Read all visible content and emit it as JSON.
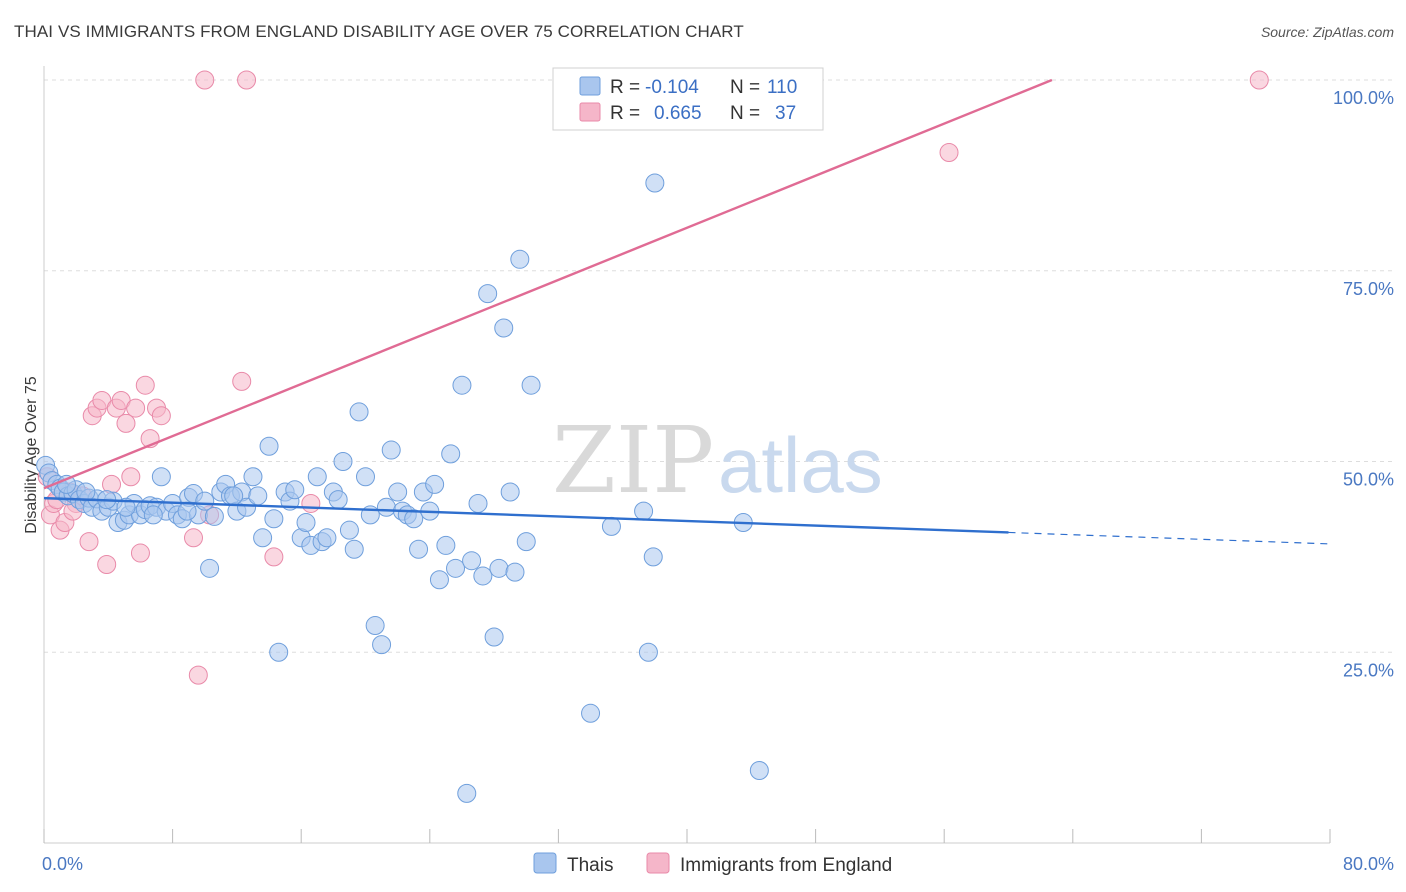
{
  "title": "THAI VS IMMIGRANTS FROM ENGLAND DISABILITY AGE OVER 75 CORRELATION CHART",
  "source": "Source: ZipAtlas.com",
  "watermark": {
    "part1": "ZIP",
    "part2": "atlas"
  },
  "legend_top": {
    "rows": [
      {
        "r_label": "R =",
        "r_value": "-0.104",
        "n_label": "N =",
        "n_value": "110",
        "color": "#a9c6ee"
      },
      {
        "r_label": "R =",
        "r_value": "0.665",
        "n_label": "N =",
        "n_value": "37",
        "color": "#f5b6c9"
      }
    ]
  },
  "chart_data": {
    "type": "scatter",
    "xlabel": "",
    "ylabel": "Disability Age Over 75",
    "xlim": [
      0,
      80
    ],
    "ylim": [
      0,
      100
    ],
    "x_tick_labels": [
      "0.0%",
      "80.0%"
    ],
    "y_ticks": [
      25,
      50,
      75,
      100
    ],
    "y_tick_labels": [
      "25.0%",
      "50.0%",
      "75.0%",
      "100.0%"
    ],
    "grid": true,
    "legend_placement": "bottom",
    "series": [
      {
        "name": "Thais",
        "color": "#a9c6ee",
        "stroke": "#6f9fdc",
        "trend": {
          "x0": 0,
          "y0": 45.2,
          "x1": 60,
          "y1": 40.7,
          "dash_to_x": 80,
          "dash_to_y": 39.2,
          "color": "#2f6fce"
        },
        "points": [
          [
            0.1,
            49.5
          ],
          [
            0.3,
            48.5
          ],
          [
            0.5,
            47.5
          ],
          [
            0.8,
            47.0
          ],
          [
            1.0,
            46.5
          ],
          [
            1.2,
            46.0
          ],
          [
            1.5,
            45.5
          ],
          [
            1.8,
            45.8
          ],
          [
            2.0,
            46.3
          ],
          [
            2.2,
            45.0
          ],
          [
            2.5,
            44.5
          ],
          [
            2.8,
            45.2
          ],
          [
            3.0,
            44.0
          ],
          [
            3.3,
            45.1
          ],
          [
            3.6,
            43.5
          ],
          [
            4.0,
            44.0
          ],
          [
            4.3,
            44.8
          ],
          [
            4.6,
            42.0
          ],
          [
            5.0,
            42.3
          ],
          [
            5.3,
            43.0
          ],
          [
            5.6,
            44.5
          ],
          [
            6.0,
            43.0
          ],
          [
            6.3,
            43.7
          ],
          [
            6.6,
            44.2
          ],
          [
            7.0,
            44.0
          ],
          [
            7.3,
            48.0
          ],
          [
            7.6,
            43.5
          ],
          [
            8.0,
            44.5
          ],
          [
            8.3,
            43.0
          ],
          [
            8.6,
            42.5
          ],
          [
            9.0,
            45.3
          ],
          [
            9.3,
            45.8
          ],
          [
            9.6,
            43.0
          ],
          [
            10.0,
            44.8
          ],
          [
            10.3,
            36.0
          ],
          [
            10.6,
            42.8
          ],
          [
            11.0,
            46.0
          ],
          [
            11.3,
            47.0
          ],
          [
            11.6,
            45.5
          ],
          [
            12.0,
            43.5
          ],
          [
            12.3,
            46.0
          ],
          [
            12.6,
            44.0
          ],
          [
            13.0,
            48.0
          ],
          [
            13.3,
            45.5
          ],
          [
            13.6,
            40.0
          ],
          [
            14.0,
            52.0
          ],
          [
            14.3,
            42.5
          ],
          [
            14.6,
            25.0
          ],
          [
            15.0,
            46.0
          ],
          [
            15.3,
            44.8
          ],
          [
            15.6,
            46.3
          ],
          [
            16.0,
            40.0
          ],
          [
            16.3,
            42.0
          ],
          [
            16.6,
            39.0
          ],
          [
            17.0,
            48.0
          ],
          [
            17.3,
            39.5
          ],
          [
            17.6,
            40.0
          ],
          [
            18.0,
            46.0
          ],
          [
            18.3,
            45.0
          ],
          [
            18.6,
            50.0
          ],
          [
            19.0,
            41.0
          ],
          [
            19.3,
            38.5
          ],
          [
            19.6,
            56.5
          ],
          [
            20.0,
            48.0
          ],
          [
            20.3,
            43.0
          ],
          [
            20.6,
            28.5
          ],
          [
            21.0,
            26.0
          ],
          [
            21.3,
            44.0
          ],
          [
            21.6,
            51.5
          ],
          [
            22.0,
            46.0
          ],
          [
            22.3,
            43.5
          ],
          [
            22.6,
            43.0
          ],
          [
            23.0,
            42.5
          ],
          [
            23.3,
            38.5
          ],
          [
            23.6,
            46.0
          ],
          [
            24.0,
            43.5
          ],
          [
            24.3,
            47.0
          ],
          [
            24.6,
            34.5
          ],
          [
            25.0,
            39.0
          ],
          [
            25.3,
            51.0
          ],
          [
            25.6,
            36.0
          ],
          [
            26.0,
            60.0
          ],
          [
            26.3,
            6.5
          ],
          [
            26.6,
            37.0
          ],
          [
            27.0,
            44.5
          ],
          [
            27.3,
            35.0
          ],
          [
            27.6,
            72.0
          ],
          [
            28.0,
            27.0
          ],
          [
            28.3,
            36.0
          ],
          [
            28.6,
            67.5
          ],
          [
            29.0,
            46.0
          ],
          [
            29.3,
            35.5
          ],
          [
            29.6,
            76.5
          ],
          [
            30.0,
            39.5
          ],
          [
            30.3,
            60.0
          ],
          [
            34.0,
            17.0
          ],
          [
            35.3,
            41.5
          ],
          [
            37.3,
            43.5
          ],
          [
            37.6,
            25.0
          ],
          [
            37.9,
            37.5
          ],
          [
            38.0,
            86.5
          ],
          [
            43.5,
            42.0
          ],
          [
            44.5,
            9.5
          ],
          [
            1.4,
            47.0
          ],
          [
            2.6,
            46.0
          ],
          [
            3.9,
            45.0
          ],
          [
            5.1,
            44.0
          ],
          [
            6.8,
            43.0
          ],
          [
            8.9,
            43.5
          ],
          [
            11.8,
            45.5
          ]
        ]
      },
      {
        "name": "Immigrants from England",
        "color": "#f5b6c9",
        "stroke": "#e98aa9",
        "trend": {
          "x0": 0,
          "y0": 46.5,
          "x1": 62.7,
          "y1": 100,
          "color": "#e06b94"
        },
        "points": [
          [
            0.2,
            48.0
          ],
          [
            0.4,
            43.0
          ],
          [
            0.6,
            44.5
          ],
          [
            1.0,
            41.0
          ],
          [
            1.3,
            42.0
          ],
          [
            1.6,
            46.0
          ],
          [
            2.0,
            44.5
          ],
          [
            2.4,
            45.5
          ],
          [
            2.8,
            39.5
          ],
          [
            3.0,
            56.0
          ],
          [
            3.3,
            57.0
          ],
          [
            3.6,
            58.0
          ],
          [
            3.9,
            36.5
          ],
          [
            4.2,
            47.0
          ],
          [
            4.5,
            57.0
          ],
          [
            4.8,
            58.0
          ],
          [
            5.1,
            55.0
          ],
          [
            5.4,
            48.0
          ],
          [
            5.7,
            57.0
          ],
          [
            6.0,
            38.0
          ],
          [
            6.3,
            60.0
          ],
          [
            6.6,
            53.0
          ],
          [
            7.0,
            57.0
          ],
          [
            7.3,
            56.0
          ],
          [
            9.3,
            40.0
          ],
          [
            9.6,
            22.0
          ],
          [
            10.0,
            100.0
          ],
          [
            10.3,
            43.0
          ],
          [
            12.3,
            60.5
          ],
          [
            12.6,
            100.0
          ],
          [
            14.3,
            37.5
          ],
          [
            16.6,
            44.5
          ],
          [
            32.5,
            100.0
          ],
          [
            56.3,
            90.5
          ],
          [
            75.6,
            100.0
          ],
          [
            1.8,
            43.5
          ],
          [
            0.8,
            45.0
          ]
        ]
      }
    ]
  },
  "legend_bottom": [
    {
      "label": "Thais",
      "color": "#a9c6ee"
    },
    {
      "label": "Immigrants from England",
      "color": "#f5b6c9"
    }
  ]
}
